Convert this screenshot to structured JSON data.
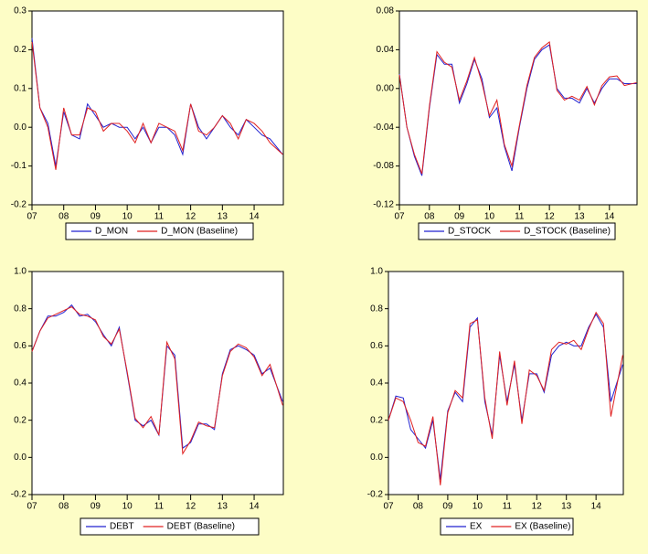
{
  "chart_data": [
    {
      "type": "line",
      "x": [
        7,
        7.25,
        7.5,
        7.75,
        8,
        8.25,
        8.5,
        8.75,
        9,
        9.25,
        9.5,
        9.75,
        10,
        10.25,
        10.5,
        10.75,
        11,
        11.25,
        11.5,
        11.75,
        12,
        12.25,
        12.5,
        12.75,
        13,
        13.25,
        13.5,
        13.75,
        14,
        14.25,
        14.5,
        14.9
      ],
      "series": [
        {
          "name": "D_MON",
          "color": "#2020d0",
          "values": [
            0.23,
            0.05,
            0.01,
            -0.1,
            0.04,
            -0.02,
            -0.03,
            0.06,
            0.03,
            0.0,
            0.01,
            0.0,
            0.0,
            -0.03,
            0.0,
            -0.04,
            0.0,
            0.0,
            -0.02,
            -0.07,
            0.06,
            0.0,
            -0.03,
            0.0,
            0.03,
            0.0,
            -0.02,
            0.02,
            0.0,
            -0.02,
            -0.03,
            -0.07
          ]
        },
        {
          "name": "D_MON (Baseline)",
          "color": "#e02020",
          "values": [
            0.22,
            0.05,
            0.0,
            -0.11,
            0.05,
            -0.02,
            -0.02,
            0.05,
            0.04,
            -0.01,
            0.01,
            0.01,
            -0.01,
            -0.04,
            0.01,
            -0.04,
            0.01,
            0.0,
            -0.01,
            -0.06,
            0.06,
            -0.01,
            -0.02,
            0.0,
            0.03,
            0.01,
            -0.03,
            0.02,
            0.01,
            -0.01,
            -0.04,
            -0.07
          ]
        }
      ],
      "xlim": [
        7,
        14.92
      ],
      "ylim": [
        -0.2,
        0.3
      ],
      "xticks": [
        {
          "value": 7,
          "label": "07"
        },
        {
          "value": 8,
          "label": "08"
        },
        {
          "value": 9,
          "label": "09"
        },
        {
          "value": 10,
          "label": "10"
        },
        {
          "value": 11,
          "label": "11"
        },
        {
          "value": 12,
          "label": "12"
        },
        {
          "value": 13,
          "label": "13"
        },
        {
          "value": 14,
          "label": "14"
        }
      ],
      "yticks": [
        -0.2,
        -0.1,
        {
          "value": 0,
          "label": "0.0"
        },
        0.1,
        0.2,
        0.3
      ]
    },
    {
      "type": "line",
      "x": [
        7,
        7.25,
        7.5,
        7.75,
        8,
        8.25,
        8.5,
        8.75,
        9,
        9.25,
        9.5,
        9.75,
        10,
        10.25,
        10.5,
        10.75,
        11,
        11.25,
        11.5,
        11.75,
        12,
        12.25,
        12.5,
        12.75,
        13,
        13.25,
        13.5,
        13.75,
        14,
        14.25,
        14.5,
        14.9
      ],
      "series": [
        {
          "name": "D_STOCK",
          "color": "#2020d0",
          "values": [
            0.015,
            -0.04,
            -0.07,
            -0.09,
            -0.02,
            0.035,
            0.025,
            0.025,
            -0.015,
            0.005,
            0.03,
            0.01,
            -0.03,
            -0.02,
            -0.06,
            -0.085,
            -0.04,
            0.0,
            0.03,
            0.04,
            0.045,
            0.0,
            -0.01,
            -0.01,
            -0.015,
            0.0,
            -0.015,
            0.0,
            0.01,
            0.01,
            0.005,
            0.005
          ]
        },
        {
          "name": "D_STOCK (Baseline)",
          "color": "#e02020",
          "values": [
            0.014,
            -0.04,
            -0.068,
            -0.088,
            -0.018,
            0.038,
            0.027,
            0.022,
            -0.012,
            0.008,
            0.032,
            0.006,
            -0.028,
            -0.012,
            -0.058,
            -0.08,
            -0.038,
            0.003,
            0.032,
            0.042,
            0.048,
            -0.002,
            -0.012,
            -0.008,
            -0.012,
            0.002,
            -0.017,
            0.003,
            0.012,
            0.013,
            0.003,
            0.006
          ]
        }
      ],
      "xlim": [
        7,
        14.92
      ],
      "ylim": [
        -0.12,
        0.08
      ],
      "xticks": [
        {
          "value": 7,
          "label": "07"
        },
        {
          "value": 8,
          "label": "08"
        },
        {
          "value": 9,
          "label": "09"
        },
        {
          "value": 10,
          "label": "10"
        },
        {
          "value": 11,
          "label": "11"
        },
        {
          "value": 12,
          "label": "12"
        },
        {
          "value": 13,
          "label": "13"
        },
        {
          "value": 14,
          "label": "14"
        }
      ],
      "yticks": [
        -0.12,
        -0.08,
        -0.04,
        {
          "value": 0,
          "label": "0.00"
        },
        0.04,
        0.08
      ]
    },
    {
      "type": "line",
      "x": [
        7,
        7.25,
        7.5,
        7.75,
        8,
        8.25,
        8.5,
        8.75,
        9,
        9.25,
        9.5,
        9.75,
        10,
        10.25,
        10.5,
        10.75,
        11,
        11.25,
        11.5,
        11.75,
        12,
        12.25,
        12.5,
        12.75,
        13,
        13.25,
        13.5,
        13.75,
        14,
        14.25,
        14.5,
        14.9
      ],
      "series": [
        {
          "name": "DEBT",
          "color": "#2020d0",
          "values": [
            0.57,
            0.68,
            0.76,
            0.76,
            0.78,
            0.82,
            0.76,
            0.77,
            0.73,
            0.66,
            0.6,
            0.7,
            0.45,
            0.2,
            0.17,
            0.2,
            0.12,
            0.6,
            0.55,
            0.05,
            0.08,
            0.18,
            0.18,
            0.15,
            0.45,
            0.58,
            0.6,
            0.58,
            0.55,
            0.45,
            0.48,
            0.3
          ]
        },
        {
          "name": "DEBT (Baseline)",
          "color": "#e02020",
          "values": [
            0.57,
            0.68,
            0.75,
            0.77,
            0.79,
            0.81,
            0.77,
            0.76,
            0.74,
            0.65,
            0.61,
            0.69,
            0.46,
            0.21,
            0.16,
            0.22,
            0.12,
            0.62,
            0.53,
            0.02,
            0.09,
            0.19,
            0.17,
            0.16,
            0.44,
            0.57,
            0.61,
            0.59,
            0.54,
            0.44,
            0.5,
            0.28
          ]
        }
      ],
      "xlim": [
        7,
        14.92
      ],
      "ylim": [
        -0.2,
        1
      ],
      "xticks": [
        {
          "value": 7,
          "label": "07"
        },
        {
          "value": 8,
          "label": "08"
        },
        {
          "value": 9,
          "label": "09"
        },
        {
          "value": 10,
          "label": "10"
        },
        {
          "value": 11,
          "label": "11"
        },
        {
          "value": 12,
          "label": "12"
        },
        {
          "value": 13,
          "label": "13"
        },
        {
          "value": 14,
          "label": "14"
        }
      ],
      "yticks": [
        -0.2,
        {
          "value": 0,
          "label": "0.0"
        },
        0.2,
        0.4,
        0.6,
        0.8,
        {
          "value": 1,
          "label": "1.0"
        }
      ]
    },
    {
      "type": "line",
      "x": [
        7,
        7.25,
        7.5,
        7.75,
        8,
        8.25,
        8.5,
        8.75,
        9,
        9.25,
        9.5,
        9.75,
        10,
        10.25,
        10.5,
        10.75,
        11,
        11.25,
        11.5,
        11.75,
        12,
        12.25,
        12.5,
        12.75,
        13,
        13.25,
        13.5,
        13.75,
        14,
        14.25,
        14.5,
        14.9
      ],
      "series": [
        {
          "name": "EX",
          "color": "#2020d0",
          "values": [
            0.2,
            0.33,
            0.32,
            0.15,
            0.1,
            0.05,
            0.2,
            -0.12,
            0.25,
            0.35,
            0.3,
            0.7,
            0.75,
            0.3,
            0.12,
            0.55,
            0.3,
            0.5,
            0.2,
            0.45,
            0.45,
            0.35,
            0.55,
            0.6,
            0.62,
            0.6,
            0.6,
            0.7,
            0.77,
            0.7,
            0.3,
            0.5
          ]
        },
        {
          "name": "EX (Baseline)",
          "color": "#e02020",
          "values": [
            0.2,
            0.32,
            0.3,
            0.2,
            0.08,
            0.06,
            0.22,
            -0.15,
            0.24,
            0.36,
            0.32,
            0.72,
            0.74,
            0.32,
            0.1,
            0.57,
            0.28,
            0.52,
            0.18,
            0.47,
            0.44,
            0.36,
            0.58,
            0.62,
            0.61,
            0.63,
            0.58,
            0.69,
            0.78,
            0.72,
            0.22,
            0.55
          ]
        }
      ],
      "xlim": [
        7,
        14.92
      ],
      "ylim": [
        -0.2,
        1
      ],
      "xticks": [
        {
          "value": 7,
          "label": "07"
        },
        {
          "value": 8,
          "label": "08"
        },
        {
          "value": 9,
          "label": "09"
        },
        {
          "value": 10,
          "label": "10"
        },
        {
          "value": 11,
          "label": "11"
        },
        {
          "value": 12,
          "label": "12"
        },
        {
          "value": 13,
          "label": "13"
        },
        {
          "value": 14,
          "label": "14"
        }
      ],
      "yticks": [
        -0.2,
        {
          "value": 0,
          "label": "0.0"
        },
        0.2,
        0.4,
        0.6,
        0.8,
        {
          "value": 1,
          "label": "1.0"
        }
      ]
    }
  ]
}
